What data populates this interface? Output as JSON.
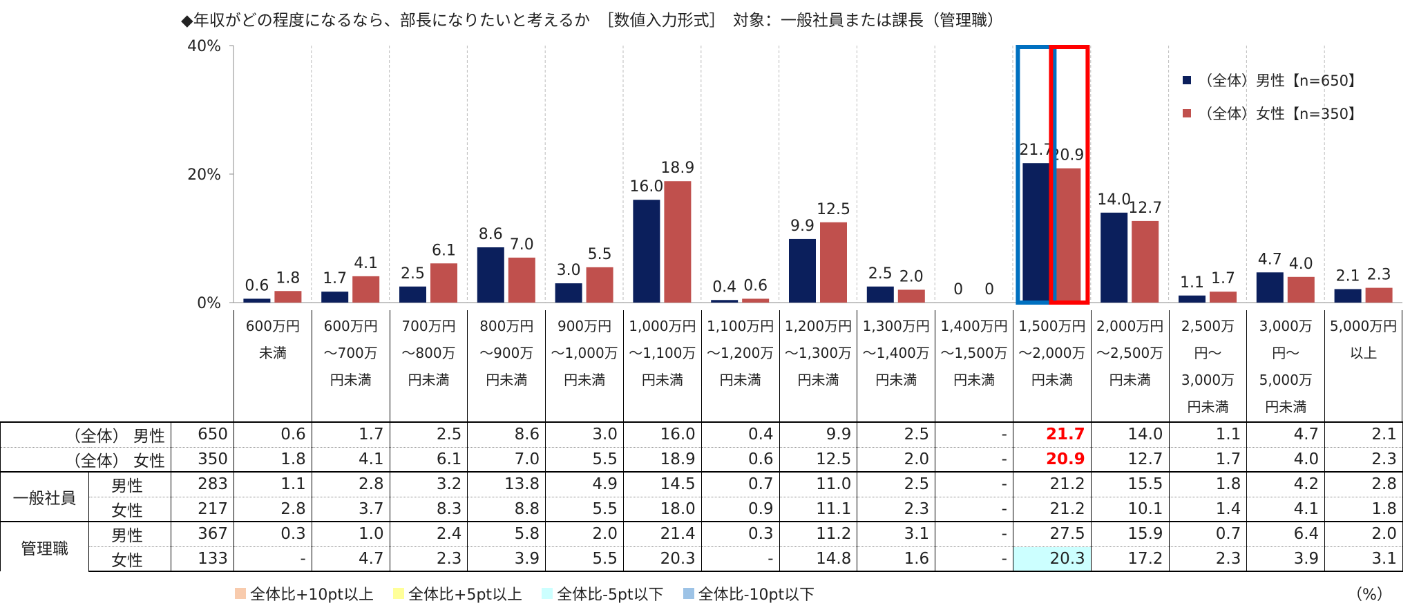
{
  "title": "◆年収がどの程度になるなら、部長になりたいと考えるか　［数値入力形式］　対象：一般社員または課長（管理職）",
  "colors": {
    "male": "#0b1f5c",
    "female": "#c0504d",
    "blue_box": "#0070c0",
    "red_box": "#ff0000",
    "highlight_cyan": "#ccffff"
  },
  "chart_data": {
    "type": "bar",
    "title": "年収がどの程度になるなら、部長になりたいと考えるか",
    "ylabel": "",
    "xlabel": "",
    "ylim": [
      0,
      40
    ],
    "yticks": [
      "0%",
      "20%",
      "40%"
    ],
    "categories": [
      "600万円\n未満",
      "600万円\n～700万\n円未満",
      "700万円\n～800万\n円未満",
      "800万円\n～900万\n円未満",
      "900万円\n～1,000万\n円未満",
      "1,000万円\n～1,100万\n円未満",
      "1,100万円\n～1,200万\n円未満",
      "1,200万円\n～1,300万\n円未満",
      "1,300万円\n～1,400万\n円未満",
      "1,400万円\n～1,500万\n円未満",
      "1,500万円\n～2,000万\n円未満",
      "2,000万円\n～2,500万\n円未満",
      "2,500万\n円～\n3,000万\n円未満",
      "3,000万\n円～\n5,000万\n円未満",
      "5,000万円\n以上"
    ],
    "series": [
      {
        "name": "（全体）男性【n=650】",
        "values": [
          0.6,
          1.7,
          2.5,
          8.6,
          3.0,
          16.0,
          0.4,
          9.9,
          2.5,
          0,
          21.7,
          14.0,
          1.1,
          4.7,
          2.1
        ],
        "labels": [
          "0.6",
          "1.7",
          "2.5",
          "8.6",
          "3.0",
          "16.0",
          "0.4",
          "9.9",
          "2.5",
          "0",
          "21.7",
          "14.0",
          "1.1",
          "4.7",
          "2.1"
        ]
      },
      {
        "name": "（全体）女性【n=350】",
        "values": [
          1.8,
          4.1,
          6.1,
          7.0,
          5.5,
          18.9,
          0.6,
          12.5,
          2.0,
          0,
          20.9,
          12.7,
          1.7,
          4.0,
          2.3
        ],
        "labels": [
          "1.8",
          "4.1",
          "6.1",
          "7.0",
          "5.5",
          "18.9",
          "0.6",
          "12.5",
          "2.0",
          "0",
          "20.9",
          "12.7",
          "1.7",
          "4.0",
          "2.3"
        ]
      }
    ],
    "highlight_category_index": 10,
    "legend_position": "top-right"
  },
  "table": {
    "rows": [
      {
        "group": "（全体）",
        "sub": "男性",
        "n": "650",
        "values": [
          "0.6",
          "1.7",
          "2.5",
          "8.6",
          "3.0",
          "16.0",
          "0.4",
          "9.9",
          "2.5",
          "-",
          "21.7",
          "14.0",
          "1.1",
          "4.7",
          "2.1"
        ]
      },
      {
        "group": "（全体）",
        "sub": "女性",
        "n": "350",
        "values": [
          "1.8",
          "4.1",
          "6.1",
          "7.0",
          "5.5",
          "18.9",
          "0.6",
          "12.5",
          "2.0",
          "-",
          "20.9",
          "12.7",
          "1.7",
          "4.0",
          "2.3"
        ]
      },
      {
        "group": "一般社員",
        "sub": "男性",
        "n": "283",
        "values": [
          "1.1",
          "2.8",
          "3.2",
          "13.8",
          "4.9",
          "14.5",
          "0.7",
          "11.0",
          "2.5",
          "-",
          "21.2",
          "15.5",
          "1.8",
          "4.2",
          "2.8"
        ]
      },
      {
        "group": "",
        "sub": "女性",
        "n": "217",
        "values": [
          "2.8",
          "3.7",
          "8.3",
          "8.8",
          "5.5",
          "18.0",
          "0.9",
          "11.1",
          "2.3",
          "-",
          "21.2",
          "10.1",
          "1.4",
          "4.1",
          "1.8"
        ]
      },
      {
        "group": "管理職",
        "sub": "男性",
        "n": "367",
        "values": [
          "0.3",
          "1.0",
          "2.4",
          "5.8",
          "2.0",
          "21.4",
          "0.3",
          "11.2",
          "3.1",
          "-",
          "27.5",
          "15.9",
          "0.7",
          "6.4",
          "2.0"
        ]
      },
      {
        "group": "",
        "sub": "女性",
        "n": "133",
        "values": [
          "-",
          "4.7",
          "2.3",
          "3.9",
          "5.5",
          "20.3",
          "-",
          "14.8",
          "1.6",
          "-",
          "20.3",
          "17.2",
          "2.3",
          "3.9",
          "3.1"
        ]
      }
    ]
  },
  "legend_bottom": [
    {
      "label": "全体比+10pt以上",
      "color": "#f8cbad"
    },
    {
      "label": "全体比+5pt以上",
      "color": "#ffff99"
    },
    {
      "label": "全体比-5pt以下",
      "color": "#ccffff"
    },
    {
      "label": "全体比-10pt以下",
      "color": "#9dc3e6"
    }
  ],
  "unit": "（%）"
}
